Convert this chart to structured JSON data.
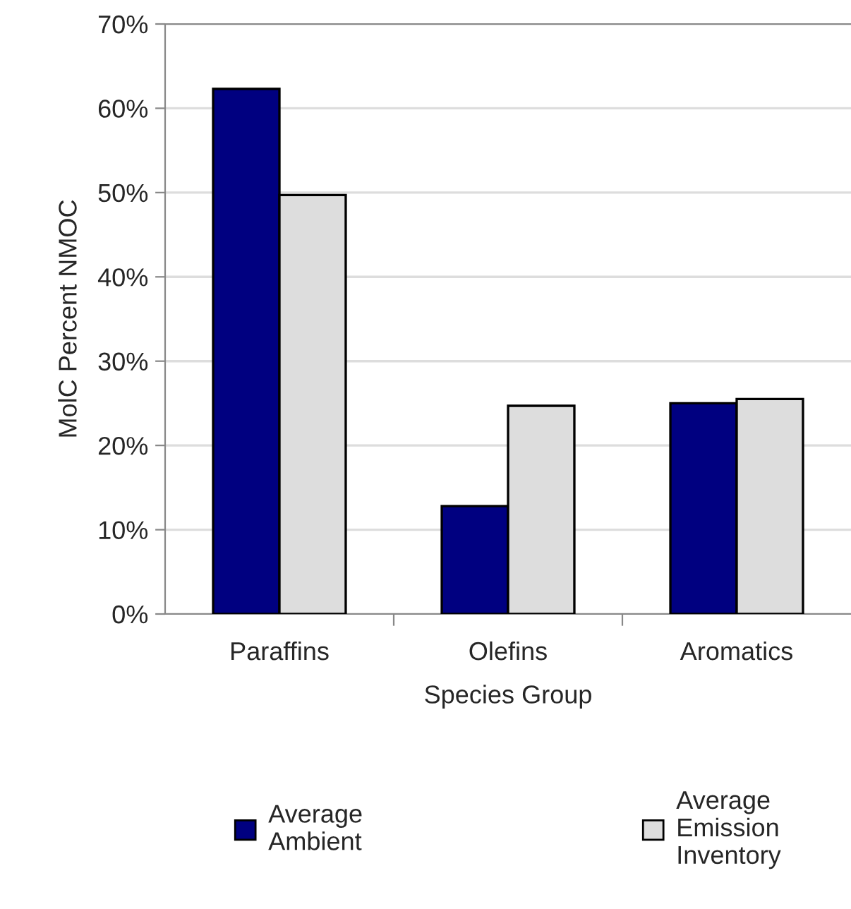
{
  "chart_data": {
    "type": "bar",
    "xlabel": "Species Group",
    "ylabel": "MolC Percent NMOC",
    "categories": [
      "Paraffins",
      "Olefins",
      "Aromatics"
    ],
    "series": [
      {
        "name": "Average\nAmbient",
        "color": "#000080",
        "values": [
          62.3,
          12.8,
          25.0
        ]
      },
      {
        "name": "Average\nEmission\nInventory",
        "color": "#dddddd",
        "values": [
          49.7,
          24.7,
          25.5
        ]
      }
    ],
    "ylim": [
      0,
      70
    ],
    "yticks": [
      {
        "value": 0,
        "label": "0%"
      },
      {
        "value": 10,
        "label": "10%"
      },
      {
        "value": 20,
        "label": "20%"
      },
      {
        "value": 30,
        "label": "30%"
      },
      {
        "value": 40,
        "label": "40%"
      },
      {
        "value": 50,
        "label": "50%"
      },
      {
        "value": 60,
        "label": "60%"
      },
      {
        "value": 70,
        "label": "70%"
      }
    ],
    "grid": "y",
    "legend": "bottom"
  }
}
